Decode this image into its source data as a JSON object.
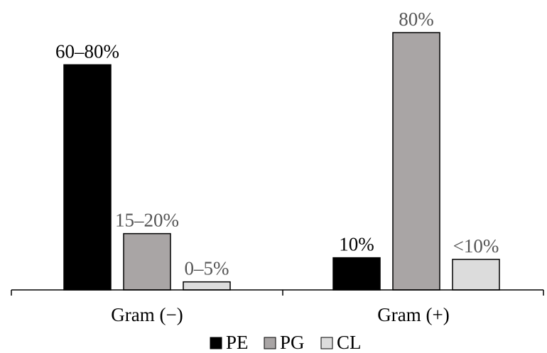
{
  "chart_data": {
    "type": "bar",
    "categories": [
      "Gram (−)",
      "Gram (+)"
    ],
    "ylim": [
      0,
      80
    ],
    "grid": false,
    "legend_position": "bottom",
    "series": [
      {
        "name": "PE",
        "color": "#000000",
        "values": [
          70,
          10
        ],
        "labels": [
          "60–80%",
          "10%"
        ],
        "label_color": "#000000"
      },
      {
        "name": "PG",
        "color": "#a9a5a5",
        "values": [
          17.5,
          80
        ],
        "labels": [
          "15–20%",
          "80%"
        ],
        "label_color": "#555555"
      },
      {
        "name": "CL",
        "color": "#dcdcdc",
        "values": [
          2.5,
          9.5
        ],
        "labels": [
          "0–5%",
          "<10%"
        ],
        "label_color": "#555555"
      }
    ]
  }
}
